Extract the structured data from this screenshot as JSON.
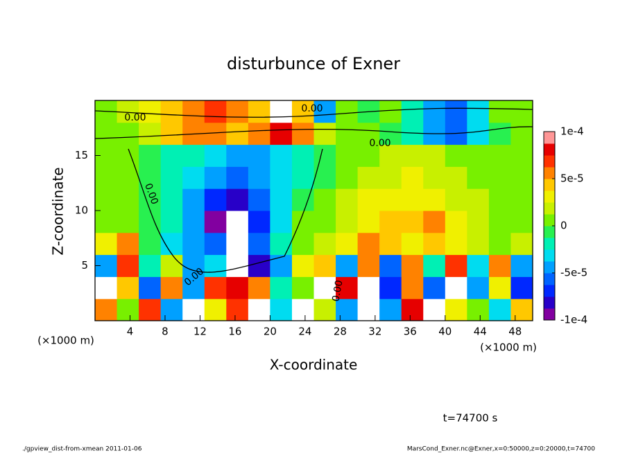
{
  "chart_data": {
    "type": "heatmap",
    "title": "disturbunce of Exner",
    "xlabel": "X-coordinate",
    "ylabel": "Z-coordinate",
    "xunit_label": "(×1000 m)",
    "time_label": "t=74700 s",
    "footer_left": "./gpview_dist-from-xmean  2011-01-06",
    "footer_right": "MarsCond_Exner.nc@Exner,x=0:50000,z=0:20000,t=74700",
    "contour_labels": [
      "0.00",
      "0.00",
      "0.00",
      "0.00",
      "0.00",
      "0.00"
    ],
    "xlim": [
      0,
      50
    ],
    "ylim": [
      0,
      20
    ],
    "xticks": [
      4,
      8,
      12,
      16,
      20,
      24,
      28,
      32,
      36,
      40,
      44,
      48
    ],
    "yticks": [
      5,
      10,
      15
    ],
    "x": [
      1.25,
      3.75,
      6.25,
      8.75,
      11.25,
      13.75,
      16.25,
      18.75,
      21.25,
      23.75,
      26.25,
      28.75,
      31.25,
      33.75,
      36.25,
      38.75,
      41.25,
      43.75,
      46.25,
      48.75
    ],
    "y": [
      1,
      3,
      5,
      7,
      9,
      11,
      13,
      15,
      17,
      19
    ],
    "values": [
      [
        5e-05,
        1e-05,
        7e-05,
        -4e-05,
        0.00012,
        3e-05,
        7e-05,
        0.00012,
        -3e-05,
        0.00012,
        2e-05,
        -5e-05,
        0.00012,
        -4e-05,
        8e-05,
        -0.00012,
        3e-05,
        1e-05,
        -3e-05,
        4e-05
      ],
      [
        0.00012,
        4e-05,
        -6e-05,
        6e-05,
        -5e-05,
        7e-05,
        8e-05,
        5e-05,
        -2e-05,
        1e-05,
        -0.00012,
        8e-05,
        0.00012,
        -7e-05,
        6e-05,
        -6e-05,
        0.00012,
        -5e-05,
        3e-05,
        -7e-05
      ],
      [
        -4e-05,
        7e-05,
        -2e-05,
        2e-05,
        -5e-05,
        -3e-05,
        -0.00012,
        -8e-05,
        -4e-05,
        3e-05,
        4e-05,
        -5e-05,
        6e-05,
        -6e-05,
        6e-05,
        -2e-05,
        7e-05,
        -3e-05,
        5e-05,
        -5e-05
      ],
      [
        3e-05,
        5e-05,
        -1e-05,
        -3e-05,
        -4e-05,
        -6e-05,
        -0.00012,
        -6e-05,
        -2e-05,
        1e-05,
        2e-05,
        3e-05,
        5e-05,
        4e-05,
        3e-05,
        4e-05,
        3e-05,
        2e-05,
        1e-05,
        2e-05
      ],
      [
        1e-05,
        0,
        -1e-05,
        -2e-05,
        -5e-05,
        -9e-05,
        -0.00012,
        -7e-05,
        -3e-05,
        0,
        1e-05,
        2e-05,
        3e-05,
        4e-05,
        4e-05,
        5e-05,
        3e-05,
        2e-05,
        1e-05,
        1e-05
      ],
      [
        1e-05,
        0,
        -1e-05,
        -2e-05,
        -4e-05,
        -7e-05,
        -8e-05,
        -6e-05,
        -3e-05,
        -1e-05,
        1e-05,
        2e-05,
        3e-05,
        3e-05,
        3e-05,
        3e-05,
        2e-05,
        2e-05,
        1e-05,
        1e-05
      ],
      [
        1e-05,
        0,
        -1e-05,
        -2e-05,
        -3e-05,
        -5e-05,
        -6e-05,
        -5e-05,
        -3e-05,
        -2e-05,
        -1e-05,
        1e-05,
        2e-05,
        2e-05,
        3e-05,
        2e-05,
        2e-05,
        1e-05,
        1e-05,
        1e-05
      ],
      [
        1e-05,
        0,
        -1e-05,
        -2e-05,
        -2e-05,
        -3e-05,
        -4e-05,
        -4e-05,
        -3e-05,
        -2e-05,
        -1e-05,
        1e-05,
        1e-05,
        2e-05,
        2e-05,
        2e-05,
        1e-05,
        1e-05,
        1e-05,
        1e-05
      ],
      [
        1e-05,
        0,
        2e-05,
        4e-05,
        5e-05,
        6e-05,
        4e-05,
        5e-05,
        8e-05,
        5e-05,
        2e-05,
        1e-05,
        0,
        -1e-05,
        -2e-05,
        -5e-05,
        -6e-05,
        -3e-05,
        -1e-05,
        0
      ],
      [
        1e-05,
        2e-05,
        3e-05,
        4e-05,
        6e-05,
        7e-05,
        5e-05,
        4e-05,
        0.00012,
        4e-05,
        -4e-05,
        1e-05,
        -1e-05,
        0,
        -2e-05,
        -4e-05,
        -6e-05,
        -3e-05,
        0,
        1e-05
      ]
    ],
    "clim": [
      -0.0001,
      0.0001
    ],
    "colors": [
      "#8200a0",
      "#2800c8",
      "#0028ff",
      "#0064ff",
      "#00a0ff",
      "#00dcf0",
      "#00f0b4",
      "#28f050",
      "#78f000",
      "#c8f000",
      "#f0f000",
      "#ffc800",
      "#ff8200",
      "#ff3200",
      "#e60000",
      "#ff9696"
    ],
    "out_of_range_color": "#ffffff",
    "cticks": [
      {
        "value": 0.0001,
        "label": "1e-4"
      },
      {
        "value": 5e-05,
        "label": "5e-5"
      },
      0,
      {
        "value": -5e-05,
        "label": "-5e-5"
      },
      {
        "value": -0.0001,
        "label": "-1e-4"
      }
    ]
  }
}
